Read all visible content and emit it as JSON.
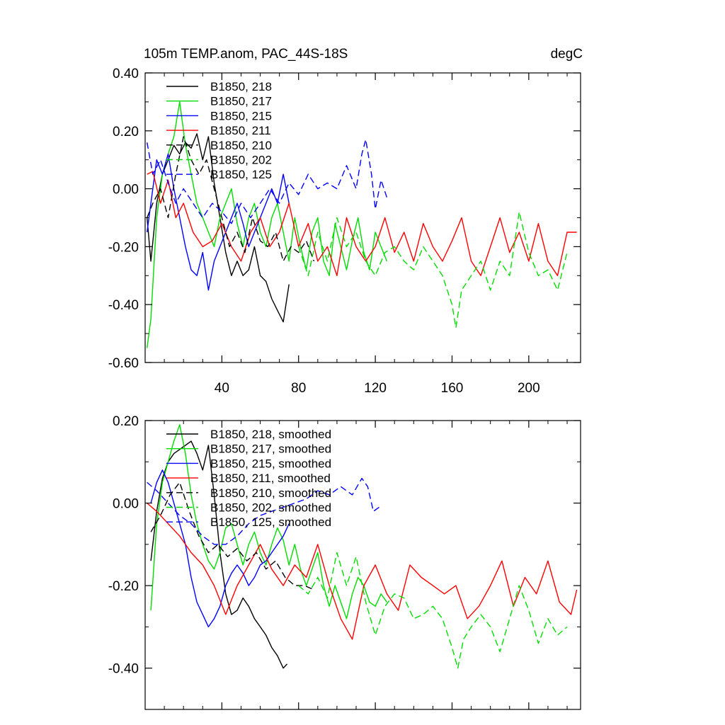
{
  "figure": {
    "title": "105m TEMP.anom, PAC_44S-18S",
    "units": "degC"
  },
  "chart_data": [
    {
      "type": "line",
      "title": "105m TEMP.anom, PAC_44S-18S",
      "units": "degC",
      "xlim": [
        0,
        227
      ],
      "ylim": [
        -0.6,
        0.4
      ],
      "x_ticks": [
        40,
        80,
        120,
        160,
        200
      ],
      "x_tick_labels": [
        "40",
        "80",
        "120",
        "160",
        "200"
      ],
      "y_ticks": [
        -0.6,
        -0.4,
        -0.2,
        0.0,
        0.2,
        0.4
      ],
      "y_tick_labels": [
        "-0.60",
        "-0.40",
        "-0.20",
        "0.00",
        "0.20",
        "0.40"
      ],
      "grid": false,
      "legend_position": "top-left",
      "series": [
        {
          "name": "B1850, 218",
          "color": "#000000",
          "dash": "solid",
          "x": [
            1,
            3,
            6,
            9,
            12,
            15,
            18,
            21,
            24,
            27,
            30,
            33,
            36,
            39,
            42,
            45,
            48,
            51,
            54,
            57,
            60,
            63,
            66,
            69,
            72,
            75
          ],
          "y": [
            -0.1,
            -0.25,
            -0.05,
            0.05,
            0.1,
            0.15,
            0.12,
            0.16,
            0.14,
            0.19,
            0.1,
            0.18,
            0.02,
            -0.1,
            -0.22,
            -0.3,
            -0.25,
            -0.3,
            -0.28,
            -0.2,
            -0.3,
            -0.32,
            -0.38,
            -0.42,
            -0.46,
            -0.33
          ]
        },
        {
          "name": "B1850, 217",
          "color": "#00dd00",
          "dash": "solid",
          "x": [
            1,
            3,
            6,
            9,
            12,
            15,
            18,
            21,
            24,
            27,
            30,
            33,
            36,
            39,
            42,
            45,
            48,
            51,
            54,
            57,
            60,
            63,
            66,
            69,
            72,
            75,
            78,
            81,
            84,
            87,
            90,
            93,
            96,
            99,
            102,
            105,
            108,
            111,
            114,
            117,
            120,
            123,
            126
          ],
          "y": [
            -0.55,
            -0.45,
            -0.1,
            0.05,
            0.12,
            0.18,
            0.3,
            0.15,
            0.05,
            -0.05,
            -0.1,
            -0.15,
            -0.2,
            -0.1,
            -0.05,
            0.0,
            -0.12,
            -0.2,
            -0.1,
            -0.05,
            -0.15,
            -0.2,
            -0.1,
            -0.05,
            -0.15,
            -0.25,
            -0.1,
            -0.2,
            -0.28,
            -0.15,
            -0.1,
            -0.25,
            -0.3,
            -0.12,
            -0.2,
            -0.28,
            -0.18,
            -0.1,
            -0.22,
            -0.28,
            -0.15,
            -0.2,
            -0.25
          ]
        },
        {
          "name": "B1850, 215",
          "color": "#0000ff",
          "dash": "solid",
          "x": [
            1,
            3,
            6,
            9,
            12,
            15,
            18,
            21,
            24,
            27,
            30,
            33,
            36,
            39,
            42,
            45,
            48,
            51,
            54,
            57,
            60,
            63,
            66,
            69,
            72,
            75
          ],
          "y": [
            -0.15,
            -0.05,
            0.1,
            0.05,
            0.12,
            0.0,
            -0.1,
            -0.2,
            -0.28,
            -0.3,
            -0.22,
            -0.35,
            -0.25,
            -0.2,
            -0.15,
            -0.1,
            -0.05,
            -0.12,
            -0.2,
            -0.15,
            -0.1,
            -0.05,
            0.0,
            -0.05,
            0.05,
            -0.05
          ]
        },
        {
          "name": "B1850, 211",
          "color": "#ff0000",
          "dash": "solid",
          "x": [
            1,
            4,
            8,
            12,
            16,
            20,
            25,
            30,
            35,
            40,
            45,
            50,
            55,
            60,
            65,
            70,
            75,
            80,
            85,
            90,
            95,
            100,
            105,
            110,
            115,
            120,
            125,
            130,
            135,
            140,
            145,
            150,
            155,
            160,
            165,
            170,
            175,
            180,
            185,
            190,
            195,
            200,
            205,
            210,
            215,
            220,
            225
          ],
          "y": [
            0.05,
            0.06,
            -0.05,
            0.03,
            -0.1,
            -0.05,
            -0.15,
            -0.2,
            -0.18,
            -0.12,
            -0.2,
            -0.25,
            -0.15,
            -0.1,
            -0.2,
            -0.15,
            -0.05,
            -0.2,
            -0.12,
            -0.25,
            -0.2,
            -0.3,
            -0.1,
            -0.2,
            -0.25,
            -0.2,
            -0.1,
            -0.22,
            -0.15,
            -0.25,
            -0.12,
            -0.2,
            -0.25,
            -0.18,
            -0.1,
            -0.25,
            -0.3,
            -0.2,
            -0.1,
            -0.22,
            -0.15,
            -0.25,
            -0.12,
            -0.25,
            -0.3,
            -0.15,
            -0.15
          ]
        },
        {
          "name": "B1850, 210",
          "color": "#000000",
          "dash": "dashed",
          "x": [
            1,
            4,
            8,
            12,
            16,
            20,
            24,
            28,
            32,
            36,
            40,
            44,
            48,
            52,
            56,
            60,
            64,
            68,
            72,
            76,
            80,
            84,
            88
          ],
          "y": [
            -0.1,
            -0.05,
            0.0,
            -0.1,
            0.05,
            0.18,
            0.1,
            0.05,
            0.1,
            0.0,
            -0.1,
            -0.2,
            -0.15,
            -0.22,
            -0.1,
            -0.18,
            -0.2,
            -0.15,
            -0.25,
            -0.2,
            -0.22,
            -0.18,
            -0.25
          ]
        },
        {
          "name": "B1850, 202",
          "color": "#00dd00",
          "dash": "dashed",
          "x": [
            80,
            85,
            90,
            95,
            100,
            105,
            110,
            115,
            120,
            125,
            130,
            135,
            140,
            145,
            150,
            155,
            160,
            162,
            165,
            170,
            175,
            180,
            185,
            190,
            195,
            200,
            205,
            210,
            215,
            220
          ],
          "y": [
            -0.2,
            -0.3,
            -0.15,
            -0.25,
            -0.1,
            -0.2,
            -0.15,
            -0.25,
            -0.3,
            -0.22,
            -0.2,
            -0.25,
            -0.28,
            -0.2,
            -0.25,
            -0.3,
            -0.4,
            -0.48,
            -0.35,
            -0.3,
            -0.25,
            -0.35,
            -0.25,
            -0.3,
            -0.08,
            -0.22,
            -0.3,
            -0.28,
            -0.35,
            -0.22
          ]
        },
        {
          "name": "B1850, 125",
          "color": "#0000ff",
          "dash": "dashed",
          "x": [
            1,
            4,
            8,
            12,
            16,
            20,
            25,
            30,
            35,
            40,
            45,
            50,
            55,
            60,
            65,
            70,
            75,
            80,
            85,
            90,
            95,
            100,
            105,
            110,
            113,
            115,
            118,
            120,
            123,
            126
          ],
          "y": [
            0.16,
            0.05,
            0.1,
            0.02,
            -0.05,
            0.0,
            -0.05,
            -0.1,
            -0.05,
            -0.08,
            -0.12,
            -0.05,
            -0.1,
            -0.05,
            0.0,
            -0.05,
            0.02,
            -0.02,
            0.05,
            0.0,
            0.02,
            0.0,
            0.08,
            0.0,
            0.12,
            0.17,
            0.05,
            -0.07,
            0.03,
            -0.03
          ]
        }
      ]
    },
    {
      "type": "line",
      "xlim": [
        0,
        227
      ],
      "ylim": [
        -0.5,
        0.2
      ],
      "x_ticks": [
        40,
        80,
        120,
        160,
        200
      ],
      "y_ticks": [
        -0.4,
        -0.2,
        0.0,
        0.2
      ],
      "y_tick_labels": [
        "-0.40",
        "-0.20",
        "0.00",
        "0.20"
      ],
      "grid": false,
      "legend_position": "top-left",
      "series": [
        {
          "name": "B1850, 218, smoothed",
          "color": "#000000",
          "dash": "solid",
          "x": [
            3,
            6,
            9,
            12,
            15,
            18,
            21,
            24,
            27,
            30,
            33,
            36,
            39,
            42,
            45,
            48,
            51,
            54,
            57,
            60,
            63,
            66,
            69,
            72,
            74
          ],
          "y": [
            -0.14,
            -0.02,
            0.06,
            0.1,
            0.12,
            0.13,
            0.14,
            0.15,
            0.12,
            0.08,
            0.14,
            0.02,
            -0.12,
            -0.22,
            -0.27,
            -0.26,
            -0.23,
            -0.25,
            -0.28,
            -0.3,
            -0.32,
            -0.35,
            -0.37,
            -0.4,
            -0.39
          ]
        },
        {
          "name": "B1850, 217, smoothed",
          "color": "#00dd00",
          "dash": "solid",
          "x": [
            3,
            6,
            9,
            12,
            15,
            18,
            21,
            24,
            27,
            30,
            33,
            36,
            39,
            42,
            45,
            48,
            51,
            54,
            57,
            60,
            63,
            66,
            69,
            72,
            75,
            78,
            81,
            84,
            87,
            90,
            93,
            96,
            99,
            102,
            105,
            108,
            111,
            114,
            117,
            120,
            123,
            126
          ],
          "y": [
            -0.26,
            -0.05,
            0.05,
            0.1,
            0.15,
            0.19,
            0.12,
            0.02,
            -0.05,
            -0.1,
            -0.14,
            -0.16,
            -0.12,
            -0.06,
            -0.05,
            -0.1,
            -0.15,
            -0.1,
            -0.07,
            -0.12,
            -0.15,
            -0.1,
            -0.06,
            -0.09,
            -0.15,
            -0.1,
            -0.16,
            -0.2,
            -0.16,
            -0.12,
            -0.2,
            -0.25,
            -0.2,
            -0.24,
            -0.28,
            -0.22,
            -0.18,
            -0.2,
            -0.24,
            -0.25,
            -0.22,
            -0.24
          ]
        },
        {
          "name": "B1850, 215, smoothed",
          "color": "#0000ff",
          "dash": "solid",
          "x": [
            3,
            6,
            9,
            12,
            15,
            18,
            21,
            24,
            27,
            30,
            33,
            36,
            39,
            42,
            45,
            48,
            51,
            54,
            57,
            60,
            63,
            66,
            69,
            72,
            75
          ],
          "y": [
            0.0,
            0.05,
            0.08,
            0.05,
            0.0,
            -0.05,
            -0.1,
            -0.18,
            -0.24,
            -0.27,
            -0.3,
            -0.28,
            -0.25,
            -0.2,
            -0.17,
            -0.15,
            -0.17,
            -0.2,
            -0.18,
            -0.15,
            -0.14,
            -0.12,
            -0.1,
            -0.08,
            -0.05
          ]
        },
        {
          "name": "B1850, 211, smoothed",
          "color": "#ff0000",
          "dash": "solid",
          "x": [
            1,
            6,
            12,
            18,
            24,
            30,
            36,
            42,
            48,
            54,
            60,
            66,
            72,
            78,
            84,
            90,
            96,
            102,
            108,
            114,
            120,
            126,
            132,
            138,
            144,
            150,
            156,
            162,
            168,
            174,
            180,
            186,
            192,
            198,
            204,
            210,
            216,
            222,
            225
          ],
          "y": [
            0.0,
            -0.02,
            -0.05,
            -0.08,
            -0.12,
            -0.15,
            -0.2,
            -0.27,
            -0.2,
            -0.15,
            -0.1,
            -0.16,
            -0.2,
            -0.15,
            -0.18,
            -0.1,
            -0.2,
            -0.28,
            -0.33,
            -0.2,
            -0.15,
            -0.22,
            -0.26,
            -0.15,
            -0.18,
            -0.2,
            -0.22,
            -0.2,
            -0.28,
            -0.25,
            -0.2,
            -0.14,
            -0.25,
            -0.18,
            -0.22,
            -0.14,
            -0.24,
            -0.27,
            -0.21
          ]
        },
        {
          "name": "B1850, 210, smoothed",
          "color": "#000000",
          "dash": "dashed",
          "x": [
            3,
            8,
            13,
            18,
            23,
            28,
            33,
            38,
            43,
            48,
            53,
            58,
            63,
            68,
            73,
            78,
            83,
            88
          ],
          "y": [
            -0.07,
            -0.03,
            0.02,
            0.05,
            -0.02,
            -0.08,
            -0.12,
            -0.1,
            -0.13,
            -0.11,
            -0.14,
            -0.12,
            -0.16,
            -0.14,
            -0.18,
            -0.2,
            -0.2,
            -0.21
          ]
        },
        {
          "name": "B1850, 202, smoothed",
          "color": "#00dd00",
          "dash": "dashed",
          "x": [
            80,
            85,
            90,
            95,
            100,
            105,
            110,
            115,
            120,
            125,
            130,
            135,
            140,
            145,
            150,
            155,
            160,
            163,
            166,
            170,
            175,
            180,
            185,
            190,
            195,
            200,
            205,
            210,
            215,
            220
          ],
          "y": [
            -0.2,
            -0.22,
            -0.18,
            -0.23,
            -0.12,
            -0.2,
            -0.13,
            -0.24,
            -0.32,
            -0.25,
            -0.22,
            -0.23,
            -0.28,
            -0.27,
            -0.25,
            -0.28,
            -0.35,
            -0.4,
            -0.33,
            -0.3,
            -0.27,
            -0.3,
            -0.36,
            -0.28,
            -0.2,
            -0.26,
            -0.34,
            -0.28,
            -0.32,
            -0.3
          ]
        },
        {
          "name": "B1850, 125, smoothed",
          "color": "#0000ff",
          "dash": "dashed",
          "x": [
            1,
            6,
            12,
            18,
            24,
            30,
            36,
            42,
            48,
            54,
            60,
            66,
            72,
            78,
            84,
            90,
            96,
            102,
            108,
            113,
            116,
            119,
            122
          ],
          "y": [
            0.05,
            0.03,
            0.0,
            -0.03,
            -0.05,
            -0.08,
            -0.1,
            -0.1,
            -0.08,
            -0.05,
            -0.03,
            -0.02,
            -0.01,
            0.0,
            0.01,
            0.03,
            0.02,
            0.04,
            0.02,
            0.06,
            0.04,
            -0.02,
            -0.01
          ]
        }
      ]
    }
  ]
}
